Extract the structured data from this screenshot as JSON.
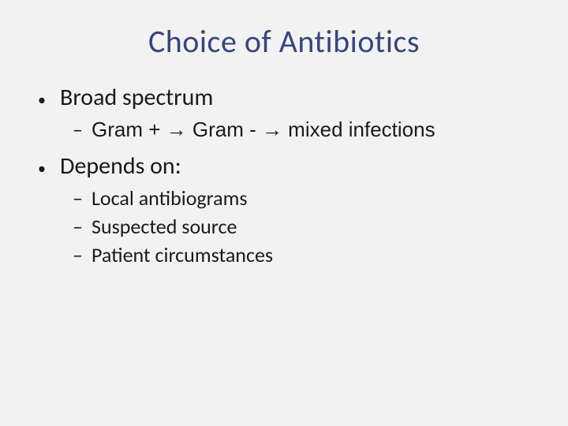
{
  "slide": {
    "title": "Choice of Antibiotics",
    "title_color": "#37467a",
    "title_fontsize": 40,
    "background_color": "#f2f2f2",
    "body_color": "#1a1a1a",
    "l1_fontsize": 30,
    "l2_fontsize": 26,
    "bullets": [
      {
        "text": "Broad spectrum",
        "sub": [
          "Gram + → Gram - → mixed infections"
        ]
      },
      {
        "text": "Depends on:",
        "sub": [
          "Local antibiograms",
          "Suspected source",
          "Patient circumstances"
        ]
      }
    ]
  }
}
